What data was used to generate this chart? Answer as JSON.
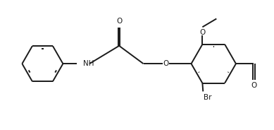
{
  "background_color": "#ffffff",
  "line_color": "#1a1a1a",
  "line_width": 1.4,
  "figsize": [
    3.89,
    1.84
  ],
  "dpi": 100,
  "xlim": [
    0.0,
    4.2
  ],
  "ylim": [
    0.1,
    2.1
  ]
}
